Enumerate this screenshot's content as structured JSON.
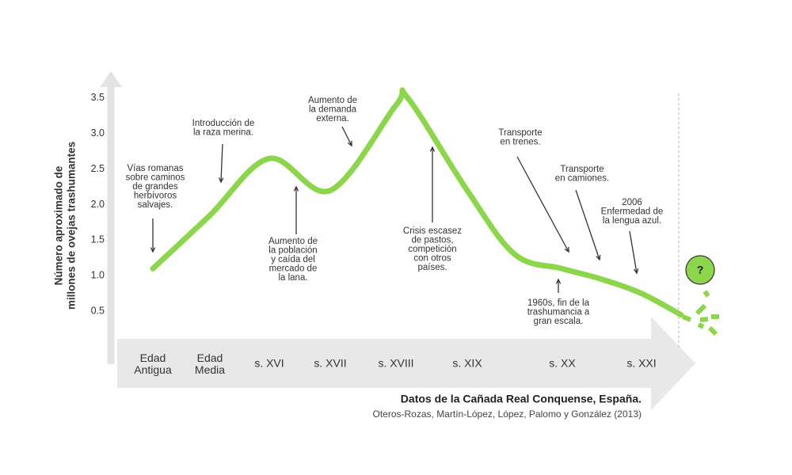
{
  "chart_data": {
    "type": "line",
    "y_label": [
      "Número aproximado de",
      "millones de ovejas trashumantes"
    ],
    "categories": [
      "Edad Antigua",
      "Edad Media",
      "s. XVI",
      "s. XVII",
      "s. XVIII",
      null,
      "s. XIX",
      null,
      "s. XX",
      null,
      "s. XXI",
      null
    ],
    "values": [
      1.1,
      1.85,
      2.65,
      2.2,
      3.4,
      3.5,
      2.2,
      1.3,
      1.1,
      0.95,
      0.75,
      0.45
    ],
    "color": "#8cd64b",
    "ylim": [
      -0.2,
      3.8
    ],
    "yticks": [
      0.5,
      {
        "value": 1.0,
        "label": "1.0"
      },
      1.5,
      {
        "value": 2.0,
        "label": "2.0"
      },
      2.5,
      {
        "value": 3.0,
        "label": "3.0"
      },
      3.5
    ],
    "annotations": [
      {
        "lines": [
          "Vías romanas",
          "sobre caminos",
          "de grandes",
          "herbívoros",
          "salvajes."
        ]
      },
      {
        "lines": [
          "Introducción de",
          "la raza merina."
        ]
      },
      {
        "lines": [
          "Aumento de",
          "la población",
          "y caída del",
          "mercado de",
          "la lana."
        ]
      },
      {
        "lines": [
          "Aumento de",
          "la demanda",
          "externa."
        ]
      },
      {
        "lines": [
          "Crisis escasez",
          "de pastos,",
          "competición",
          "con otros",
          "países."
        ]
      },
      {
        "lines": [
          "Transporte",
          "en trenes."
        ]
      },
      {
        "lines": [
          "Transporte",
          "en camiones."
        ]
      },
      {
        "lines": [
          "2006",
          "Enfermedad de",
          "la lengua azul."
        ]
      },
      {
        "lines": [
          "1960s, fin de la",
          "trashumancia a",
          "gran escala."
        ]
      }
    ],
    "future_mark": "?",
    "source_title": "Datos de la Cañada Real Conquense, España.",
    "source": "Oteros-Rozas, Martín-López, López, Palomo y González (2013)"
  }
}
